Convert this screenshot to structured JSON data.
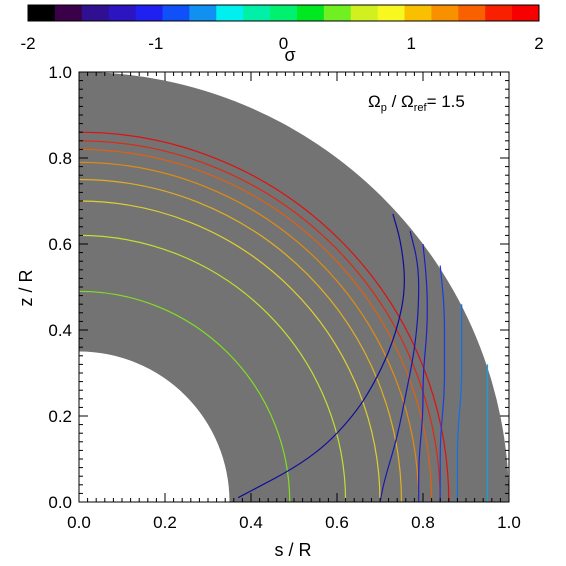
{
  "chart_data": {
    "type": "contour",
    "colorbar": {
      "min": -2,
      "max": 2,
      "tick_values": [
        -2,
        -1,
        0,
        1,
        2
      ],
      "tick_labels": [
        "-2",
        "-1",
        "0",
        "1",
        "2"
      ],
      "label": "σ",
      "colors": [
        "#000000",
        "#3a0048",
        "#2e1090",
        "#2c14c0",
        "#2020f0",
        "#1050f8",
        "#1090f0",
        "#00f0f0",
        "#00f0a8",
        "#00f070",
        "#00e820",
        "#70f020",
        "#d0f020",
        "#f8f820",
        "#f8c000",
        "#f89000",
        "#f86000",
        "#f82000",
        "#f80000"
      ]
    },
    "annotation": {
      "prefix": "Ω",
      "sub1": "p",
      "mid": " / Ω",
      "sub2": "ref",
      "suffix": "= 1.5"
    },
    "xlabel": "s / R",
    "ylabel": "z / R",
    "xlim": [
      0,
      1
    ],
    "ylim": [
      0,
      1
    ],
    "x_ticks": [
      "0.0",
      "0.2",
      "0.4",
      "0.6",
      "0.8",
      "1.0"
    ],
    "y_ticks": [
      "0.0",
      "0.2",
      "0.4",
      "0.6",
      "0.8",
      "1.0"
    ],
    "domain": {
      "type": "spherical-shell-quadrant",
      "inner_radius": 0.35,
      "outer_radius": 1.0,
      "fill_color": "#737373"
    },
    "circular_contours": [
      {
        "r": 0.86,
        "color": "#e01010"
      },
      {
        "r": 0.84,
        "color": "#e02810"
      },
      {
        "r": 0.82,
        "color": "#e06010"
      },
      {
        "r": 0.79,
        "color": "#e08c10"
      },
      {
        "r": 0.75,
        "color": "#e0b020"
      },
      {
        "r": 0.7,
        "color": "#e0d030"
      },
      {
        "r": 0.62,
        "color": "#c0e030"
      },
      {
        "r": 0.49,
        "color": "#80e020"
      }
    ],
    "vertical_contours": [
      {
        "color": "#0c0c9c",
        "points": [
          [
            0.73,
            0.67
          ],
          [
            0.75,
            0.6
          ],
          [
            0.76,
            0.5
          ],
          [
            0.74,
            0.4
          ],
          [
            0.7,
            0.3
          ],
          [
            0.64,
            0.2
          ],
          [
            0.54,
            0.1
          ],
          [
            0.37,
            0.01
          ]
        ]
      },
      {
        "color": "#1818b0",
        "points": [
          [
            0.77,
            0.63
          ],
          [
            0.79,
            0.55
          ],
          [
            0.79,
            0.45
          ],
          [
            0.78,
            0.35
          ],
          [
            0.76,
            0.25
          ],
          [
            0.74,
            0.15
          ],
          [
            0.71,
            0.05
          ],
          [
            0.7,
            0.0
          ]
        ]
      },
      {
        "color": "#2020c8",
        "points": [
          [
            0.8,
            0.6
          ],
          [
            0.81,
            0.5
          ],
          [
            0.81,
            0.4
          ],
          [
            0.8,
            0.3
          ],
          [
            0.8,
            0.2
          ],
          [
            0.79,
            0.1
          ],
          [
            0.79,
            0.0
          ]
        ]
      },
      {
        "color": "#1840e0",
        "points": [
          [
            0.84,
            0.55
          ],
          [
            0.85,
            0.45
          ],
          [
            0.85,
            0.35
          ],
          [
            0.85,
            0.25
          ],
          [
            0.84,
            0.15
          ],
          [
            0.84,
            0.05
          ],
          [
            0.84,
            0.0
          ]
        ]
      },
      {
        "color": "#1070e8",
        "points": [
          [
            0.89,
            0.46
          ],
          [
            0.89,
            0.36
          ],
          [
            0.89,
            0.26
          ],
          [
            0.88,
            0.16
          ],
          [
            0.88,
            0.06
          ],
          [
            0.88,
            0.0
          ]
        ]
      },
      {
        "color": "#10a0e8",
        "points": [
          [
            0.95,
            0.32
          ],
          [
            0.95,
            0.22
          ],
          [
            0.95,
            0.12
          ],
          [
            0.95,
            0.0
          ]
        ]
      }
    ]
  }
}
